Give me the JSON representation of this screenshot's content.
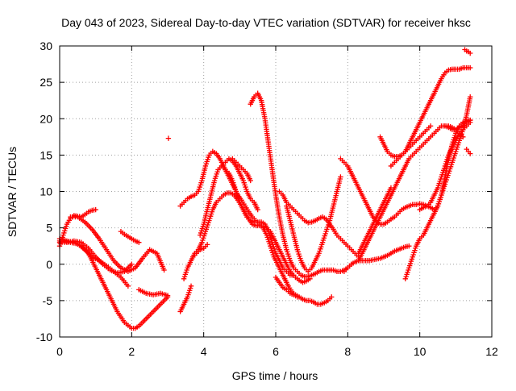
{
  "chart_data": {
    "type": "scatter",
    "title": "Day 043 of 2023, Sidereal Day-to-day VTEC variation (SDTVAR) for receiver hksc",
    "xlabel": "GPS time / hours",
    "ylabel": "SDTVAR / TECUs",
    "xlim": [
      0,
      12
    ],
    "ylim": [
      -10,
      30
    ],
    "x_ticks": [
      "0",
      "2",
      "4",
      "6",
      "8",
      "10",
      "12"
    ],
    "y_ticks": [
      "-10",
      "-5",
      "0",
      "5",
      "10",
      "15",
      "20",
      "25",
      "30"
    ],
    "grid": true,
    "legend": "none",
    "marker": "+",
    "color": "#ff0000",
    "series": [
      {
        "x": [
          0.0,
          0.2,
          0.4,
          0.6,
          0.8,
          1.0,
          1.2,
          1.4,
          1.6,
          1.8,
          2.0,
          2.1,
          2.2,
          2.4,
          2.6,
          2.8,
          3.0
        ],
        "y": [
          3.5,
          3.2,
          3.0,
          2.5,
          1.5,
          -0.5,
          -2.5,
          -4.5,
          -6.5,
          -8.0,
          -8.8,
          -8.8,
          -8.5,
          -7.5,
          -6.5,
          -5.5,
          -4.5
        ]
      },
      {
        "x": [
          0.0,
          0.2,
          0.4,
          0.6,
          0.8,
          1.0,
          1.2,
          1.4,
          1.6,
          1.8,
          2.0
        ],
        "y": [
          3.0,
          3.0,
          3.2,
          3.0,
          2.2,
          1.0,
          0.0,
          -0.8,
          -1.2,
          -1.0,
          0.0
        ]
      },
      {
        "x": [
          0.0,
          0.3,
          0.5,
          0.7,
          0.9,
          1.1,
          1.3,
          1.5,
          1.7,
          1.9
        ],
        "y": [
          3.2,
          3.0,
          2.8,
          2.0,
          1.0,
          0.5,
          -0.2,
          -1.0,
          -1.8,
          -3.0
        ]
      },
      {
        "x": [
          0.0,
          0.1,
          0.2,
          0.3,
          0.4,
          0.5,
          0.6,
          0.7,
          0.8,
          0.9,
          1.0
        ],
        "y": [
          2.5,
          4.0,
          5.5,
          6.3,
          6.7,
          6.6,
          6.5,
          6.8,
          7.2,
          7.4,
          7.5
        ]
      },
      {
        "x": [
          0.3,
          0.5,
          0.7,
          0.9,
          1.1,
          1.3,
          1.5,
          1.7,
          1.9,
          2.1,
          2.3,
          2.5,
          2.7,
          2.9
        ],
        "y": [
          6.5,
          6.5,
          5.8,
          4.8,
          3.5,
          2.0,
          0.5,
          -0.5,
          -1.0,
          -0.5,
          0.8,
          2.0,
          1.5,
          -0.8
        ]
      },
      {
        "x": [
          1.7,
          1.8,
          1.9,
          2.0,
          2.1,
          2.2
        ],
        "y": [
          4.5,
          4.1,
          3.8,
          3.5,
          3.2,
          3.0
        ]
      },
      {
        "x": [
          2.2,
          2.4,
          2.6,
          2.8,
          3.0
        ],
        "y": [
          -3.5,
          -4.0,
          -4.2,
          -4.0,
          -4.3
        ]
      },
      {
        "x": [
          3.02
        ],
        "y": [
          17.3
        ]
      },
      {
        "x": [
          3.35,
          3.45,
          3.55,
          3.65
        ],
        "y": [
          -6.5,
          -5.5,
          -4.5,
          -3.0
        ]
      },
      {
        "x": [
          3.35,
          3.45,
          3.55,
          3.65,
          3.75,
          3.85,
          3.95,
          4.05,
          4.15,
          4.25,
          4.35,
          4.45,
          4.55,
          4.65,
          4.75,
          4.85,
          4.95,
          5.05,
          5.15,
          5.25,
          5.35,
          5.45,
          5.55,
          5.65,
          5.75,
          5.85,
          5.95,
          6.05,
          6.15,
          6.25,
          6.35,
          6.45,
          6.55,
          6.65,
          6.75,
          6.85,
          6.95,
          7.05,
          7.15,
          7.25,
          7.35,
          7.45,
          7.55
        ],
        "y": [
          8.0,
          8.5,
          9.0,
          9.3,
          9.5,
          10.0,
          11.5,
          13.5,
          15.0,
          15.5,
          15.2,
          14.5,
          13.5,
          12.5,
          11.5,
          10.5,
          9.5,
          8.8,
          8.0,
          7.2,
          6.5,
          6.0,
          5.5,
          5.0,
          4.0,
          2.5,
          1.0,
          0.0,
          -1.0,
          -2.0,
          -3.0,
          -3.8,
          -4.2,
          -4.5,
          -4.8,
          -5.0,
          -5.0,
          -5.2,
          -5.5,
          -5.5,
          -5.3,
          -5.0,
          -4.5
        ]
      },
      {
        "x": [
          3.45,
          3.55,
          3.65,
          3.75,
          3.85,
          3.95,
          4.05,
          4.15,
          4.25,
          4.35,
          4.45,
          4.55,
          4.65,
          4.75,
          4.85,
          4.95,
          5.05,
          5.15,
          5.25,
          5.35,
          5.45,
          5.55,
          5.65,
          5.75,
          5.85,
          5.95,
          6.05,
          6.15,
          6.25,
          6.35,
          6.45,
          6.55,
          6.65,
          6.75,
          6.85,
          6.95
        ],
        "y": [
          -2.0,
          -0.5,
          0.5,
          1.5,
          2.0,
          3.0,
          4.5,
          6.0,
          7.5,
          8.5,
          9.0,
          9.5,
          9.8,
          9.8,
          9.5,
          8.8,
          8.0,
          7.0,
          6.2,
          5.5,
          5.3,
          5.3,
          5.2,
          5.0,
          4.5,
          3.5,
          2.5,
          1.5,
          0.5,
          -0.5,
          -1.3,
          -1.8,
          -2.2,
          -2.5,
          -2.3,
          -2.0
        ]
      },
      {
        "x": [
          3.7,
          3.8,
          3.9,
          4.0,
          4.1
        ],
        "y": [
          1.0,
          1.5,
          2.0,
          2.2,
          2.7
        ]
      },
      {
        "x": [
          3.9,
          4.0,
          4.1,
          4.2,
          4.3,
          4.4,
          4.5,
          4.6,
          4.7,
          4.8,
          4.9,
          5.0,
          5.1,
          5.2,
          5.3,
          5.4,
          5.5,
          5.6,
          5.7,
          5.8,
          5.9,
          6.0,
          6.1,
          6.2,
          6.3,
          6.4,
          6.5
        ],
        "y": [
          4.0,
          5.5,
          7.5,
          9.5,
          11.5,
          13.0,
          13.5,
          13.0,
          12.5,
          11.5,
          10.0,
          8.5,
          7.5,
          6.5,
          6.0,
          5.8,
          5.8,
          5.8,
          5.5,
          4.5,
          3.0,
          1.5,
          0.5,
          -0.5,
          -1.0,
          -1.5,
          -1.5
        ]
      },
      {
        "x": [
          4.5,
          4.6,
          4.7,
          4.8,
          4.9,
          5.0,
          5.1,
          5.2,
          5.3,
          5.4,
          5.5
        ],
        "y": [
          13.5,
          14.0,
          14.5,
          14.2,
          13.5,
          12.5,
          11.5,
          10.0,
          9.0,
          8.5,
          7.5
        ]
      },
      {
        "x": [
          4.8,
          4.9,
          5.0,
          5.1,
          5.2,
          5.3
        ],
        "y": [
          14.5,
          14.0,
          13.5,
          13.0,
          12.5,
          11.5
        ]
      },
      {
        "x": [
          5.3,
          5.4,
          5.5,
          5.6,
          5.7,
          5.8,
          5.9,
          6.0,
          6.1,
          6.2,
          6.3,
          6.4,
          6.5,
          6.6,
          6.7,
          6.8,
          6.9,
          7.0,
          7.1,
          7.2,
          7.3,
          7.4,
          7.5,
          7.6,
          7.7,
          7.8,
          7.9,
          8.0,
          8.1
        ],
        "y": [
          22.0,
          23.0,
          23.5,
          22.5,
          20.0,
          16.5,
          13.0,
          9.5,
          6.5,
          4.0,
          2.0,
          0.5,
          -0.5,
          -1.0,
          -1.5,
          -1.7,
          -1.7,
          -1.5,
          -1.3,
          -1.0,
          -0.8,
          -0.8,
          -0.8,
          -0.8,
          -1.0,
          -1.0,
          -0.8,
          -0.5,
          0.0
        ]
      },
      {
        "x": [
          6.1,
          6.2,
          6.3,
          6.4,
          6.5,
          6.6,
          6.7,
          6.8,
          6.9,
          7.0,
          7.1,
          7.2,
          7.3,
          7.4,
          7.5,
          7.6,
          7.7,
          7.8,
          7.9,
          8.0,
          8.1,
          8.2,
          8.3
        ],
        "y": [
          10.0,
          9.5,
          8.5,
          8.0,
          7.5,
          7.0,
          6.5,
          6.0,
          5.7,
          5.8,
          6.0,
          6.3,
          6.5,
          6.2,
          5.5,
          4.8,
          4.0,
          3.5,
          3.0,
          2.5,
          2.0,
          1.5,
          1.0
        ]
      },
      {
        "x": [
          6.0,
          6.1,
          6.2,
          6.3,
          6.4,
          6.5,
          6.6
        ],
        "y": [
          -1.8,
          -2.5,
          -3.2,
          -3.5,
          -4.0,
          -4.2,
          -4.5
        ]
      },
      {
        "x": [
          6.3,
          6.4,
          6.5,
          6.6,
          6.7,
          6.8,
          6.9,
          7.0,
          7.1,
          7.2,
          7.3,
          7.4,
          7.5,
          7.6,
          7.7,
          7.8
        ],
        "y": [
          8.0,
          6.0,
          4.0,
          2.0,
          0.5,
          -0.5,
          -1.0,
          -0.5,
          0.5,
          1.5,
          3.0,
          4.5,
          6.0,
          8.0,
          10.0,
          12.0
        ]
      },
      {
        "x": [
          7.8,
          7.9,
          8.0,
          8.1,
          8.2,
          8.3,
          8.4,
          8.5,
          8.6,
          8.7,
          8.8,
          8.9,
          9.0,
          9.1,
          9.2,
          9.3,
          9.4,
          9.5,
          9.6,
          9.7,
          9.8,
          9.9,
          10.0,
          10.1,
          10.2,
          10.3,
          10.4,
          10.5,
          10.6,
          10.7,
          10.8,
          10.9,
          11.0,
          11.1,
          11.2,
          11.3,
          11.4
        ],
        "y": [
          14.5,
          14.0,
          13.5,
          12.5,
          11.5,
          10.5,
          9.5,
          8.5,
          7.5,
          6.5,
          5.8,
          5.5,
          5.5,
          5.8,
          6.2,
          6.5,
          7.0,
          7.5,
          7.8,
          8.0,
          8.2,
          8.2,
          8.3,
          8.2,
          8.0,
          7.8,
          7.5,
          8.0,
          9.5,
          12.0,
          14.5,
          16.5,
          18.0,
          19.0,
          19.5,
          19.7,
          19.8
        ]
      },
      {
        "x": [
          7.9,
          8.0,
          8.1,
          8.2,
          8.3,
          8.4,
          8.5,
          8.6,
          8.7,
          8.8,
          8.9,
          9.0,
          9.1,
          9.2,
          9.3,
          9.4,
          9.5,
          9.6,
          9.7
        ],
        "y": [
          -1.0,
          -0.5,
          0.0,
          0.3,
          0.5,
          0.5,
          0.5,
          0.5,
          0.6,
          0.7,
          0.8,
          1.0,
          1.2,
          1.5,
          1.8,
          2.0,
          2.2,
          2.4,
          2.5
        ]
      },
      {
        "x": [
          8.3,
          8.4,
          8.5,
          8.6,
          8.7,
          8.8,
          8.9,
          9.0,
          9.1,
          9.2,
          9.3,
          9.4,
          9.5,
          9.6,
          9.7,
          9.8,
          9.9,
          10.0,
          10.1,
          10.2,
          10.3,
          10.4,
          10.5,
          10.6,
          10.7,
          10.8,
          10.9,
          11.0,
          11.1,
          11.2,
          11.3,
          11.4
        ],
        "y": [
          0.5,
          1.5,
          2.5,
          3.5,
          4.5,
          5.5,
          6.5,
          7.5,
          8.5,
          9.5,
          10.5,
          11.5,
          12.5,
          13.5,
          14.5,
          15.0,
          15.5,
          16.0,
          16.5,
          17.0,
          17.5,
          18.0,
          18.5,
          19.0,
          19.0,
          18.8,
          18.5,
          18.5,
          18.8,
          19.0,
          19.5,
          19.8
        ]
      },
      {
        "x": [
          8.3,
          8.4,
          8.5,
          8.6,
          8.7,
          8.8,
          8.9,
          9.0,
          9.1,
          9.2
        ],
        "y": [
          1.5,
          2.5,
          3.5,
          4.5,
          5.5,
          6.5,
          7.5,
          8.5,
          9.5,
          10.5
        ]
      },
      {
        "x": [
          8.9,
          9.0,
          9.1,
          9.2,
          9.3,
          9.4,
          9.5,
          9.6,
          9.7,
          9.8,
          9.9,
          10.0,
          10.1,
          10.2,
          10.3,
          10.4,
          10.5,
          10.6,
          10.7,
          10.8,
          10.9,
          11.0,
          11.1,
          11.2,
          11.3,
          11.4
        ],
        "y": [
          17.5,
          16.5,
          15.5,
          15.0,
          14.8,
          14.8,
          15.0,
          15.5,
          16.5,
          17.5,
          18.5,
          19.5,
          20.5,
          21.5,
          22.5,
          23.5,
          24.5,
          25.5,
          26.3,
          26.7,
          26.8,
          26.8,
          26.8,
          27.0,
          27.0,
          27.0
        ]
      },
      {
        "x": [
          9.2,
          9.3,
          9.4,
          9.5,
          9.6,
          9.7,
          9.8,
          9.9,
          10.0,
          10.1,
          10.2,
          10.3
        ],
        "y": [
          13.5,
          14.0,
          14.5,
          15.0,
          15.5,
          16.0,
          16.5,
          17.0,
          17.5,
          18.0,
          18.5,
          19.0
        ]
      },
      {
        "x": [
          9.6,
          9.7,
          9.8,
          9.9,
          10.0,
          10.1,
          10.2,
          10.3,
          10.4,
          10.5,
          10.6,
          10.7,
          10.8,
          10.9,
          11.0,
          11.1,
          11.2,
          11.3,
          11.4
        ],
        "y": [
          -2.0,
          -0.5,
          1.0,
          2.5,
          3.5,
          4.0,
          5.0,
          6.0,
          7.0,
          8.0,
          9.5,
          11.0,
          12.5,
          14.0,
          15.5,
          17.0,
          18.5,
          20.5,
          23.0
        ]
      },
      {
        "x": [
          10.0,
          10.1,
          10.2,
          10.3,
          10.4,
          10.5,
          10.6,
          10.7,
          10.8,
          10.9,
          11.0,
          11.1,
          11.2,
          11.3,
          11.4
        ],
        "y": [
          7.5,
          7.8,
          8.0,
          8.5,
          9.5,
          10.5,
          12.0,
          13.5,
          15.0,
          16.0,
          17.0,
          18.0,
          18.5,
          19.0,
          19.5
        ]
      },
      {
        "x": [
          10.7,
          10.8,
          10.9,
          11.0,
          11.1,
          11.2
        ],
        "y": [
          19.0,
          19.0,
          18.8,
          18.5,
          18.0,
          17.5
        ]
      },
      {
        "x": [
          11.25,
          11.3,
          11.35,
          11.4
        ],
        "y": [
          29.5,
          29.3,
          29.2,
          29.0
        ]
      },
      {
        "x": [
          11.3,
          11.35,
          11.4
        ],
        "y": [
          15.8,
          15.5,
          15.2
        ]
      }
    ]
  }
}
